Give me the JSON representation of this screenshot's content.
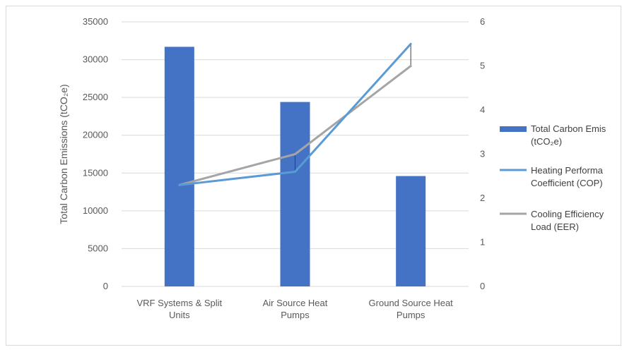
{
  "chart_data": {
    "type": "bar",
    "categories": [
      [
        "VRF Systems & Split",
        "Units"
      ],
      [
        "Air Source Heat",
        "Pumps"
      ],
      [
        "Ground Source Heat",
        "Pumps"
      ]
    ],
    "bar_series": {
      "name": [
        "Total Carbon Emis",
        "(tCO₂e)"
      ],
      "values": [
        31700,
        24400,
        14600
      ],
      "color": "#4472c4"
    },
    "line_series": [
      {
        "name": [
          "Heating Performa",
          "Coefficient (COP)"
        ],
        "values": [
          2.3,
          2.6,
          5.5
        ],
        "color": "#5b9bd5"
      },
      {
        "name": [
          "Cooling Efficiency",
          "Load (EER)"
        ],
        "values": [
          2.3,
          3.0,
          5.0
        ],
        "color": "#a5a5a5"
      }
    ],
    "ylabel": "Total Carbon Emissions (tCO₂e)",
    "ylim": [
      0,
      35000
    ],
    "yticks": [
      0,
      5000,
      10000,
      15000,
      20000,
      25000,
      30000,
      35000
    ],
    "y2lim": [
      0,
      6
    ],
    "y2ticks": [
      0,
      1,
      2,
      3,
      4,
      5,
      6
    ],
    "grid": true,
    "legend": "right"
  }
}
